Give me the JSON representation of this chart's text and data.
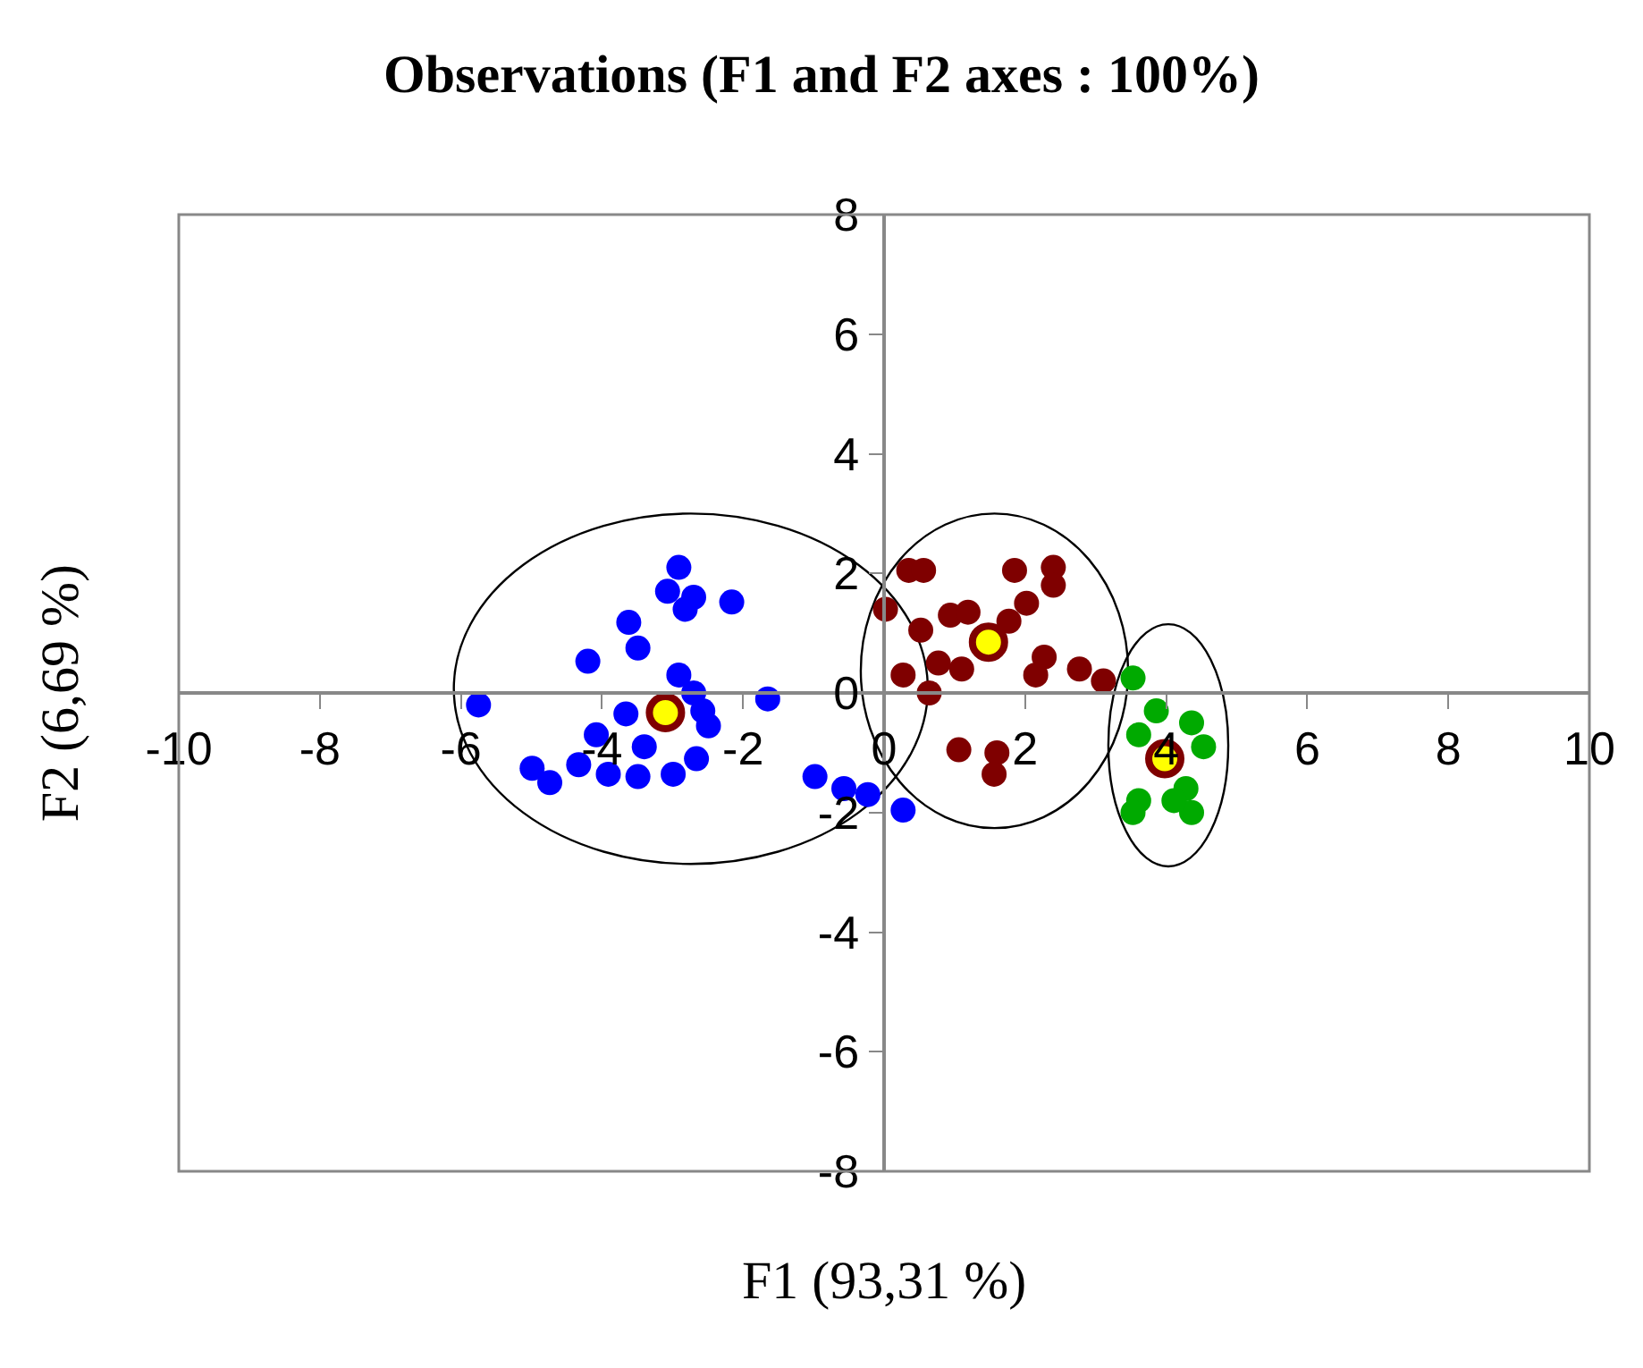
{
  "chart_data": {
    "type": "scatter",
    "title": "Observations (F1 and F2 axes : 100%)",
    "xlabel": "F1 (93,31 %)",
    "ylabel": "F2 (6,69 %)",
    "xlim": [
      -10,
      10
    ],
    "ylim": [
      -8,
      8
    ],
    "xticks": [
      -10,
      -8,
      -6,
      -4,
      -2,
      0,
      2,
      4,
      6,
      8,
      10
    ],
    "yticks": [
      -8,
      -6,
      -4,
      -2,
      0,
      2,
      4,
      6,
      8
    ],
    "grid": false,
    "marker": "circle",
    "series": [
      {
        "color": "#0000ff",
        "x": [
          -5.75,
          -4.2,
          -3.62,
          -3.49,
          -2.91,
          -3.07,
          -2.82,
          -2.7,
          -2.16,
          -2.91,
          -3.66,
          -4.08,
          -2.57,
          -2.49,
          -2.66,
          -2.99,
          -3.49,
          -3.91,
          -4.33,
          -4.99,
          -4.74,
          -1.65,
          -0.98,
          -0.57,
          0.27,
          -0.23,
          -2.7,
          -3.4
        ],
        "values": [
          -0.2,
          0.53,
          1.18,
          0.75,
          2.1,
          1.7,
          1.4,
          1.6,
          1.52,
          0.3,
          -0.35,
          -0.7,
          -0.3,
          -0.55,
          -1.1,
          -1.36,
          -1.4,
          -1.36,
          -1.2,
          -1.26,
          -1.5,
          -0.1,
          -1.4,
          -1.6,
          -1.96,
          -1.7,
          0.0,
          -0.9
        ]
      },
      {
        "color": "#7f0000",
        "x": [
          0.35,
          0.56,
          0.02,
          0.52,
          0.94,
          1.19,
          0.27,
          0.64,
          0.77,
          1.1,
          1.85,
          2.4,
          2.4,
          2.02,
          1.77,
          2.27,
          2.15,
          2.77,
          3.11,
          1.06,
          1.6,
          1.56
        ],
        "values": [
          2.05,
          2.05,
          1.4,
          1.05,
          1.3,
          1.35,
          0.3,
          0.0,
          0.5,
          0.4,
          2.05,
          2.1,
          1.8,
          1.5,
          1.2,
          0.6,
          0.3,
          0.4,
          0.2,
          -0.95,
          -1.0,
          -1.36
        ]
      },
      {
        "color": "#00aa00",
        "x": [
          3.53,
          3.86,
          4.36,
          3.61,
          4.53,
          3.61,
          4.28,
          4.36,
          3.53,
          4.11
        ],
        "values": [
          0.25,
          -0.3,
          -0.5,
          -0.7,
          -0.9,
          -1.8,
          -1.6,
          -2.0,
          -2.0,
          -1.8
        ]
      },
      {
        "color": "#ffff00",
        "x": [
          -3.1,
          1.48,
          3.98
        ],
        "values": [
          -0.33,
          0.85,
          -1.1
        ]
      }
    ]
  }
}
